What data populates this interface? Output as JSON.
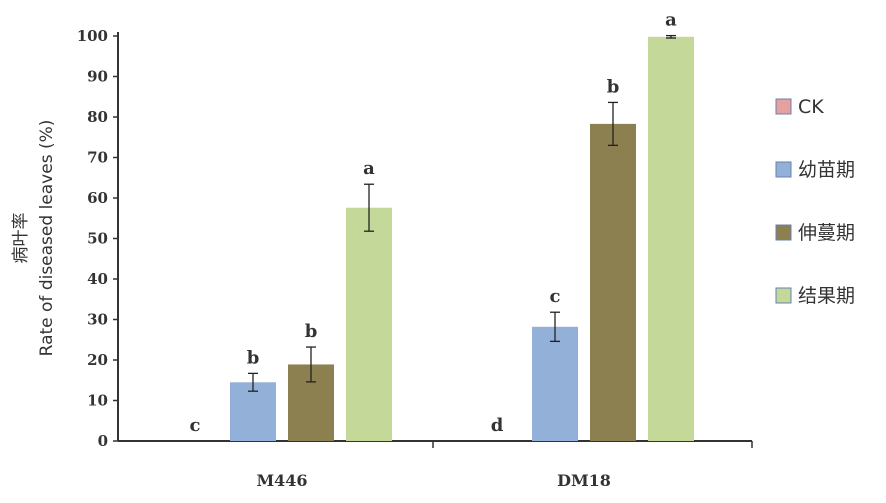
{
  "chart_data": {
    "type": "bar",
    "ylabel_cn": "病叶率",
    "ylabel": "Rate of diseased leaves (%)",
    "xlabel": "",
    "ylim": [
      0,
      100
    ],
    "yticks": [
      0,
      10,
      20,
      30,
      40,
      50,
      60,
      70,
      80,
      90,
      100
    ],
    "categories": [
      "M446",
      "DM18"
    ],
    "series": [
      {
        "name": "CK",
        "color": "#e6a0a0",
        "values": [
          0,
          0
        ],
        "errors": [
          0,
          0
        ],
        "labels": [
          "c",
          "d"
        ]
      },
      {
        "name": "幼苗期",
        "color": "#92b0d8",
        "values": [
          14.5,
          28.2
        ],
        "errors": [
          2.2,
          3.6
        ],
        "labels": [
          "b",
          "c"
        ]
      },
      {
        "name": "伸蔓期",
        "color": "#8c7f50",
        "values": [
          18.9,
          78.3
        ],
        "errors": [
          4.3,
          5.3
        ],
        "labels": [
          "b",
          "b"
        ]
      },
      {
        "name": "结果期",
        "color": "#c4d89a",
        "values": [
          57.6,
          99.8
        ],
        "errors": [
          5.8,
          0.3
        ],
        "labels": [
          "a",
          "a"
        ]
      }
    ],
    "legend_position": "right",
    "grid": false
  }
}
